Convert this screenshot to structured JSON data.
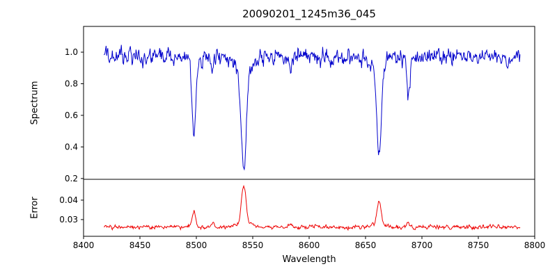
{
  "figure": {
    "title": "20090201_1245m36_045",
    "xlabel": "Wavelength",
    "background_color": "#ffffff",
    "frame_color": "#000000"
  },
  "chart_data": [
    {
      "type": "line",
      "panel": "spectrum",
      "title": "20090201_1245m36_045",
      "ylabel": "Spectrum",
      "line_color": "#0000cc",
      "xlim": [
        8400,
        8800
      ],
      "ylim": [
        0.195,
        1.163
      ],
      "yticks": [
        "0.2",
        "0.4",
        "0.6",
        "0.8",
        "1.0"
      ],
      "x_start": 8418,
      "x_end": 8787,
      "x_step": 0.5,
      "baseline": 0.97,
      "noise_amplitude": 0.027,
      "features": [
        {
          "center": 8498,
          "amplitude": -0.44,
          "sigma": 1.6
        },
        {
          "center": 8498,
          "amplitude": -0.07,
          "sigma": 4.0
        },
        {
          "center": 8514,
          "amplitude": -0.1,
          "sigma": 1.2
        },
        {
          "center": 8542,
          "amplitude": -0.63,
          "sigma": 2.2
        },
        {
          "center": 8542,
          "amplitude": -0.1,
          "sigma": 7.0
        },
        {
          "center": 8583,
          "amplitude": -0.05,
          "sigma": 1.0
        },
        {
          "center": 8662,
          "amplitude": -0.56,
          "sigma": 1.9
        },
        {
          "center": 8662,
          "amplitude": -0.09,
          "sigma": 5.0
        },
        {
          "center": 8688,
          "amplitude": -0.26,
          "sigma": 1.3
        }
      ],
      "feature_minima_read_off_chart": {
        "8498": 0.46,
        "8542": 0.23,
        "8662": 0.32,
        "8688": 0.71
      }
    },
    {
      "type": "line",
      "panel": "error",
      "ylabel": "Error",
      "xlabel": "Wavelength",
      "line_color": "#ee0000",
      "xlim": [
        8400,
        8800
      ],
      "ylim": [
        0.0214,
        0.0507
      ],
      "yticks": [
        "0.03",
        "0.04"
      ],
      "xticks": [
        "8400",
        "8450",
        "8500",
        "8550",
        "8600",
        "8650",
        "8700",
        "8750",
        "8800"
      ],
      "x_start": 8418,
      "x_end": 8787,
      "x_step": 0.5,
      "baseline": 0.0262,
      "noise_amplitude": 0.0005,
      "features": [
        {
          "center": 8498,
          "amplitude": 0.0075,
          "sigma": 1.5
        },
        {
          "center": 8514,
          "amplitude": 0.0018,
          "sigma": 1.2
        },
        {
          "center": 8542,
          "amplitude": 0.0185,
          "sigma": 2.0
        },
        {
          "center": 8542,
          "amplitude": 0.0025,
          "sigma": 6.0
        },
        {
          "center": 8583,
          "amplitude": 0.0012,
          "sigma": 1.0
        },
        {
          "center": 8662,
          "amplitude": 0.0115,
          "sigma": 1.8
        },
        {
          "center": 8662,
          "amplitude": 0.0015,
          "sigma": 4.0
        },
        {
          "center": 8688,
          "amplitude": 0.0022,
          "sigma": 1.2
        }
      ],
      "feature_maxima_read_off_chart": {
        "8498": 0.034,
        "8542": 0.047,
        "8662": 0.038
      }
    }
  ]
}
